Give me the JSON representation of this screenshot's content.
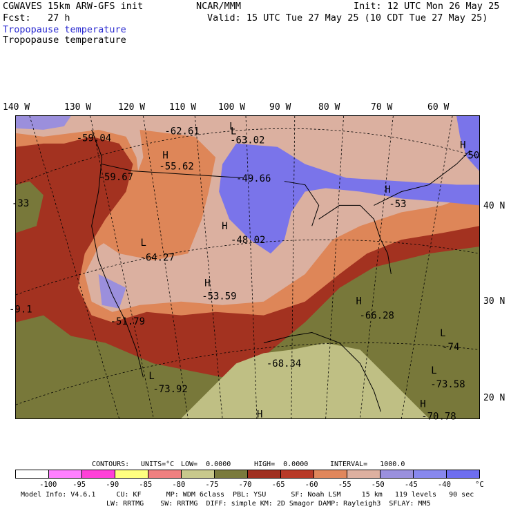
{
  "header": {
    "model": "CGWAVES 15km ARW-GFS init",
    "center": "NCAR/MMM",
    "init": "Init: 12 UTC Mon 26 May 25",
    "fcst": "Fcst:   27 h",
    "valid": "Valid: 15 UTC Tue 27 May 25 (10 CDT Tue 27 May 25)",
    "field_blue": "Tropopause temperature",
    "field_black": "Tropopause temperature"
  },
  "lon_labels": [
    "140 W",
    "130 W",
    "120 W",
    "110 W",
    "100 W",
    "90 W",
    "80 W",
    "70 W",
    "60 W"
  ],
  "lat_labels": [
    "40 N",
    "30 N",
    "20 N"
  ],
  "map_labels": [
    {
      "text": "L",
      "kind": "low"
    },
    {
      "text": "-62.61",
      "kind": "value"
    },
    {
      "text": "L",
      "kind": "low"
    },
    {
      "text": "-63.02",
      "kind": "value"
    },
    {
      "text": "-59.04",
      "kind": "value"
    },
    {
      "text": "H",
      "kind": "high"
    },
    {
      "text": "-55.62",
      "kind": "value"
    },
    {
      "text": "H",
      "kind": "high"
    },
    {
      "text": "-50",
      "kind": "value"
    },
    {
      "text": "-59.67",
      "kind": "value"
    },
    {
      "text": "-49.66",
      "kind": "value"
    },
    {
      "text": "H",
      "kind": "high"
    },
    {
      "text": "-53",
      "kind": "value"
    },
    {
      "text": "-33",
      "kind": "value"
    },
    {
      "text": "H",
      "kind": "high"
    },
    {
      "text": "-48.02",
      "kind": "value"
    },
    {
      "text": "L",
      "kind": "low"
    },
    {
      "text": "-64.27",
      "kind": "value"
    },
    {
      "text": "H",
      "kind": "high"
    },
    {
      "text": "-53.59",
      "kind": "value"
    },
    {
      "text": "-9.1",
      "kind": "value"
    },
    {
      "text": "H",
      "kind": "high"
    },
    {
      "text": "-66.28",
      "kind": "value"
    },
    {
      "text": "-51.79",
      "kind": "value"
    },
    {
      "text": "L",
      "kind": "low"
    },
    {
      "text": "-74",
      "kind": "value"
    },
    {
      "text": "-68.34",
      "kind": "value"
    },
    {
      "text": "L",
      "kind": "low"
    },
    {
      "text": "-73.92",
      "kind": "value"
    },
    {
      "text": "L",
      "kind": "low"
    },
    {
      "text": "-73.58",
      "kind": "value"
    },
    {
      "text": "H",
      "kind": "high"
    },
    {
      "text": "H",
      "kind": "high"
    },
    {
      "text": "-70.78",
      "kind": "value"
    }
  ],
  "contour_info": {
    "contours": "CONTOURS:",
    "units": "UNITS=°C",
    "low": "LOW=  0.0000",
    "high": "HIGH=  0.0000",
    "interval": "INTERVAL=   1000.0"
  },
  "colorbar": {
    "colors": [
      "#ffffff",
      "#ff80ff",
      "#ff40d8",
      "#ffff80",
      "#f08080",
      "#c8c88c",
      "#7a7a3c",
      "#a03020",
      "#b83a28",
      "#e0875c",
      "#ddb0a0",
      "#9a90dd",
      "#8888ee",
      "#6e6ef0"
    ],
    "labels": [
      "-100",
      "-95",
      "-90",
      "-85",
      "-80",
      "-75",
      "-70",
      "-65",
      "-60",
      "-55",
      "-50",
      "-45",
      "-40"
    ],
    "unit": "°C"
  },
  "footer": {
    "line1": "Model Info: V4.6.1     CU: KF      MP: WDM 6class  PBL: YSU      SF: Noah LSM     15 km   119 levels   90 sec",
    "line2": "LW: RRTMG    SW: RRTMG  DIFF: simple KM: 2D Smagor DAMP: Rayleigh3  SFLAY: MM5"
  },
  "map_colors": {
    "purple_light": "#9b8fdc",
    "blue": "#7a74ea",
    "pink": "#dbb0a0",
    "orange": "#de8658",
    "brick": "#a33220",
    "olive": "#78783a",
    "khaki": "#bfbf84"
  }
}
